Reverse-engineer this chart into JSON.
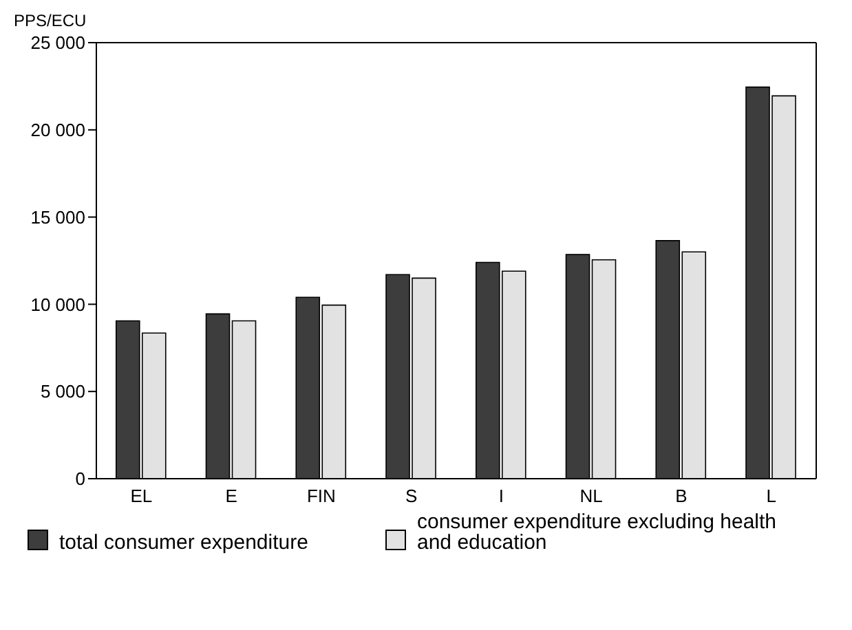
{
  "chart_data": {
    "type": "bar",
    "ylabel": "PPS/ECU",
    "categories": [
      "EL",
      "E",
      "FIN",
      "S",
      "I",
      "NL",
      "B",
      "L"
    ],
    "series": [
      {
        "name": "total consumer expenditure",
        "color": "#3d3d3d",
        "values": [
          9050,
          9450,
          10400,
          11700,
          12400,
          12850,
          13650,
          22450
        ]
      },
      {
        "name": "consumer expenditure excluding health and education",
        "color": "#e2e2e2",
        "values": [
          8350,
          9050,
          9950,
          11500,
          11900,
          12550,
          13000,
          21950
        ]
      }
    ],
    "ylim": [
      0,
      25000
    ],
    "yticks": [
      {
        "value": 0,
        "label": "0"
      },
      {
        "value": 5000,
        "label": "5 000"
      },
      {
        "value": 10000,
        "label": "10 000"
      },
      {
        "value": 15000,
        "label": "15 000"
      },
      {
        "value": 20000,
        "label": "20 000"
      },
      {
        "value": 25000,
        "label": "25 000"
      }
    ],
    "grid": false,
    "legend": "bottom"
  }
}
